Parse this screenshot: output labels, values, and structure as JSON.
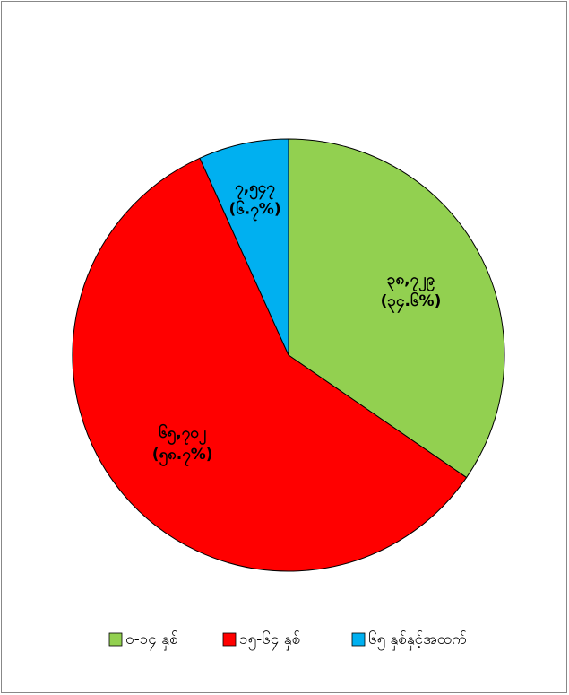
{
  "chart_data": {
    "type": "pie",
    "categories": [
      "၀-၁၄ နှစ်",
      "၁၅-၆၄ နှစ်",
      "၆၅ နှစ်နှင့်အထက်"
    ],
    "values": [
      38729,
      65702,
      7547
    ],
    "value_labels": [
      "၃၈,၇၂၉",
      "၆၅,၇၀၂",
      "၇,၅၄၇"
    ],
    "percentages": [
      34.6,
      58.7,
      6.7
    ],
    "percent_labels": [
      "(၃၄.၆%)",
      "(၅၈.၇%)",
      "(၆.၇%)"
    ],
    "colors": [
      "#92d050",
      "#ff0000",
      "#00b0f0"
    ],
    "legend": "bottom"
  }
}
